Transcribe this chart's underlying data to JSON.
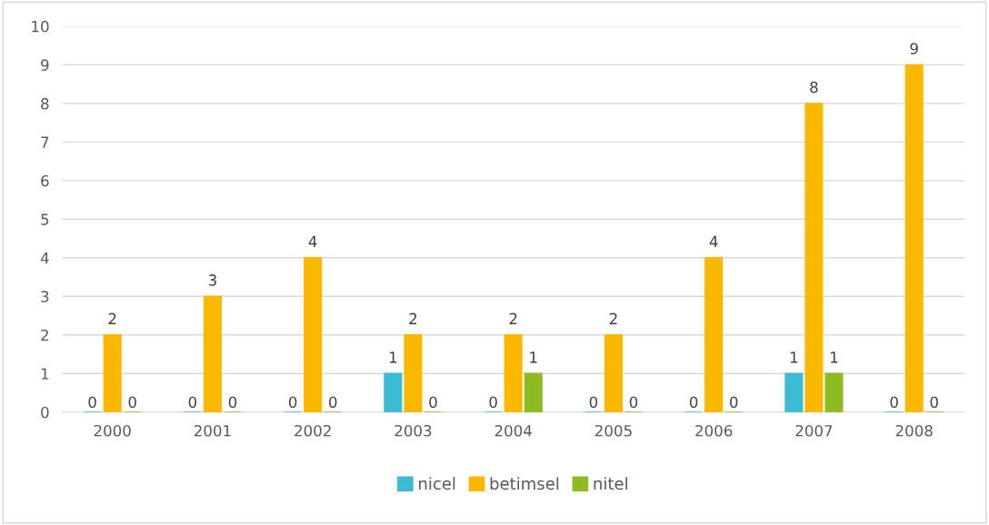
{
  "chart_data": {
    "type": "bar",
    "categories": [
      "2000",
      "2001",
      "2002",
      "2003",
      "2004",
      "2005",
      "2006",
      "2007",
      "2008"
    ],
    "series": [
      {
        "name": "nicel",
        "color": "#3cbcd4",
        "values": [
          0,
          0,
          0,
          1,
          0,
          0,
          0,
          1,
          0
        ]
      },
      {
        "name": "betimsel",
        "color": "#fbb800",
        "values": [
          2,
          3,
          4,
          2,
          2,
          2,
          4,
          8,
          9
        ]
      },
      {
        "name": "nitel",
        "color": "#8dbb22",
        "values": [
          0,
          0,
          0,
          0,
          1,
          0,
          0,
          1,
          0
        ]
      }
    ],
    "ylim": [
      0,
      10
    ],
    "yticks": [
      0,
      1,
      2,
      3,
      4,
      5,
      6,
      7,
      8,
      9,
      10
    ],
    "grid": "y",
    "legend": "bottom",
    "data_labels": true
  }
}
